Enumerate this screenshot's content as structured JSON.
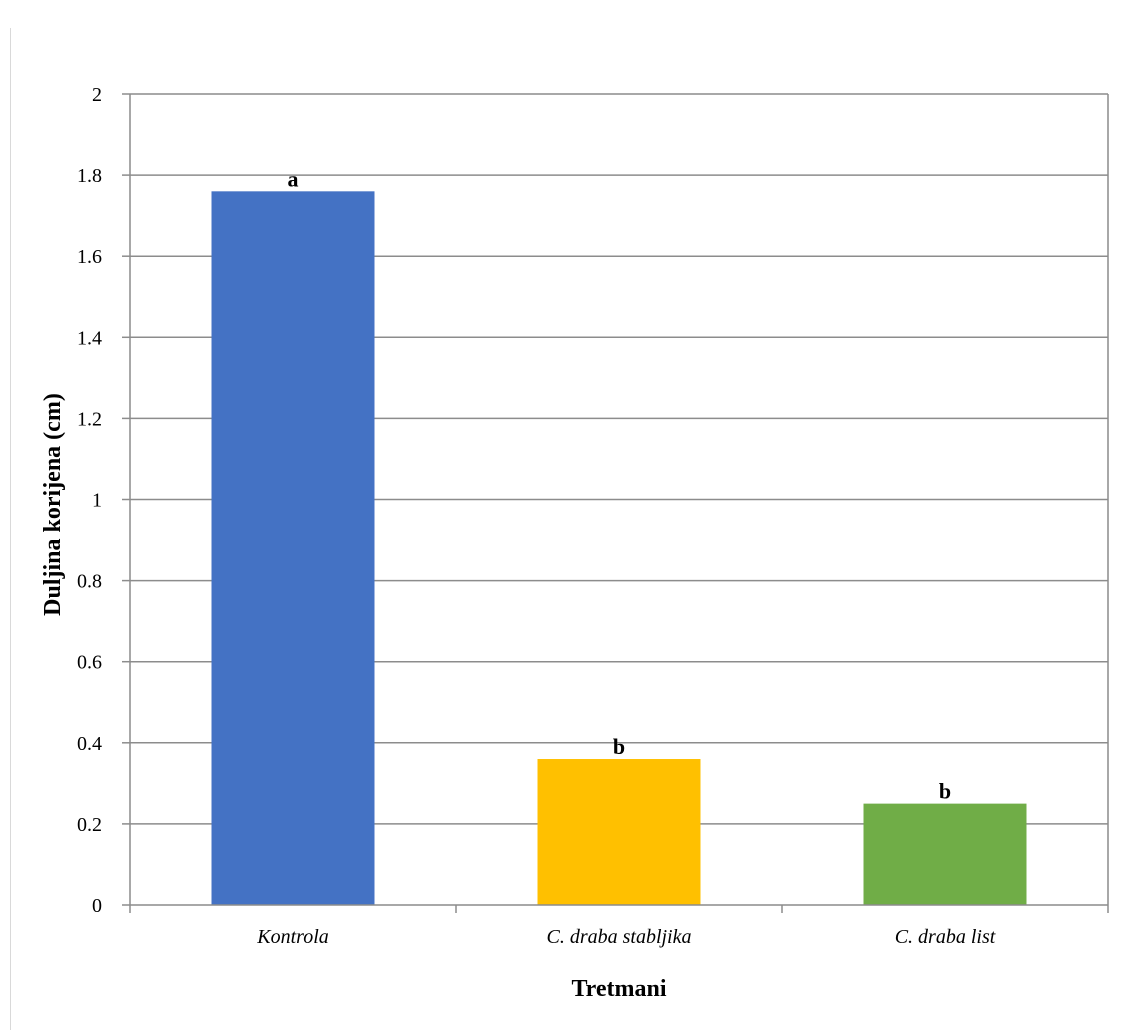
{
  "chart_data": {
    "type": "bar",
    "categories": [
      "Kontrola",
      "C. draba stabljika",
      "C. draba list"
    ],
    "values": [
      1.76,
      0.36,
      0.25
    ],
    "data_labels": [
      "a",
      "b",
      "b"
    ],
    "colors": [
      "#4472c4",
      "#ffc000",
      "#70ad47"
    ],
    "title": "",
    "xlabel": "Tretmani",
    "ylabel": "Duljina korijena (cm)",
    "ylim": [
      0,
      2
    ],
    "yticks": [
      "0",
      "0.2",
      "0.4",
      "0.6",
      "0.8",
      "1",
      "1.2",
      "1.4",
      "1.6",
      "1.8",
      "2"
    ],
    "grid": "horizontal",
    "legend": "none"
  }
}
